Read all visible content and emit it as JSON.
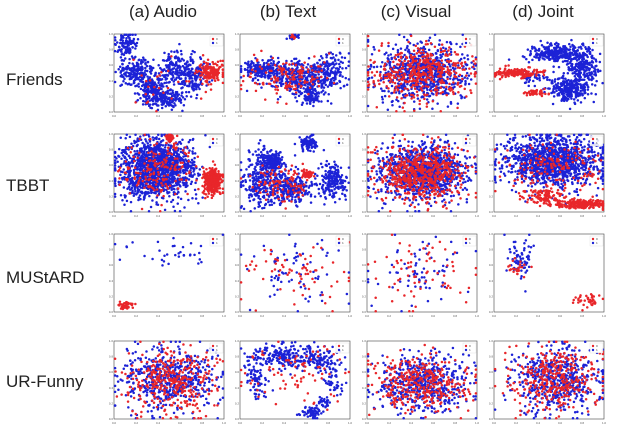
{
  "columns": [
    "(a) Audio",
    "(b) Text",
    "(c) Visual",
    "(d) Joint"
  ],
  "rows": [
    "Friends",
    "TBBT",
    "MUStARD",
    "UR-Funny"
  ],
  "colors": {
    "class0": "#e8262a",
    "class1": "#1c22d6",
    "frame": "#444444",
    "tick": "#555555"
  },
  "legend_labels": [
    "0",
    "1"
  ],
  "axis_ticks": [
    "0.0",
    "0.2",
    "0.4",
    "0.6",
    "0.8",
    "1.0"
  ],
  "chart_data": {
    "type": "scatter",
    "description_of_series": [
      "0",
      "1"
    ],
    "xlim": [
      0,
      1
    ],
    "ylim": [
      0,
      1
    ],
    "legend_position": "top-right",
    "panels": [
      {
        "row": "Friends",
        "col": "(a) Audio",
        "n0": 170,
        "n1": 900,
        "clusters": [
          {
            "cls": 0,
            "x": 0.88,
            "y": 0.52,
            "sx": 0.06,
            "sy": 0.07,
            "w": 0.9
          },
          {
            "cls": 1,
            "x": 0.12,
            "y": 0.85,
            "sx": 0.05,
            "sy": 0.08,
            "w": 0.12
          },
          {
            "cls": 1,
            "x": 0.2,
            "y": 0.5,
            "sx": 0.08,
            "sy": 0.1,
            "w": 0.25
          },
          {
            "cls": 1,
            "x": 0.45,
            "y": 0.18,
            "sx": 0.1,
            "sy": 0.06,
            "w": 0.18
          },
          {
            "cls": 1,
            "x": 0.55,
            "y": 0.55,
            "sx": 0.08,
            "sy": 0.1,
            "w": 0.18
          },
          {
            "cls": 1,
            "x": 0.72,
            "y": 0.45,
            "sx": 0.07,
            "sy": 0.12,
            "w": 0.15
          },
          {
            "cls": 1,
            "x": 0.35,
            "y": 0.3,
            "sx": 0.06,
            "sy": 0.08,
            "w": 0.12
          },
          {
            "cls": 0,
            "x": 0.4,
            "y": 0.3,
            "sx": 0.15,
            "sy": 0.2,
            "w": 0.1
          }
        ]
      },
      {
        "row": "Friends",
        "col": "(b) Text",
        "n0": 150,
        "n1": 800,
        "clusters": [
          {
            "cls": 1,
            "x": 0.48,
            "y": 0.97,
            "sx": 0.02,
            "sy": 0.02,
            "w": 0.04
          },
          {
            "cls": 0,
            "x": 0.48,
            "y": 0.97,
            "sx": 0.01,
            "sy": 0.01,
            "w": 0.08
          },
          {
            "cls": 1,
            "x": 0.2,
            "y": 0.55,
            "sx": 0.1,
            "sy": 0.06,
            "w": 0.25
          },
          {
            "cls": 1,
            "x": 0.5,
            "y": 0.45,
            "sx": 0.15,
            "sy": 0.1,
            "w": 0.4
          },
          {
            "cls": 1,
            "x": 0.8,
            "y": 0.5,
            "sx": 0.08,
            "sy": 0.12,
            "w": 0.2
          },
          {
            "cls": 1,
            "x": 0.65,
            "y": 0.2,
            "sx": 0.04,
            "sy": 0.05,
            "w": 0.1
          },
          {
            "cls": 0,
            "x": 0.45,
            "y": 0.45,
            "sx": 0.2,
            "sy": 0.12,
            "w": 0.92
          }
        ]
      },
      {
        "row": "Friends",
        "col": "(c) Visual",
        "n0": 450,
        "n1": 700,
        "clusters": [
          {
            "cls": 1,
            "x": 0.5,
            "y": 0.5,
            "sx": 0.22,
            "sy": 0.18,
            "w": 1
          },
          {
            "cls": 0,
            "x": 0.5,
            "y": 0.5,
            "sx": 0.22,
            "sy": 0.18,
            "w": 1
          }
        ]
      },
      {
        "row": "Friends",
        "col": "(d) Joint",
        "n0": 200,
        "n1": 800,
        "clusters": [
          {
            "cls": 0,
            "x": 0.22,
            "y": 0.5,
            "sx": 0.1,
            "sy": 0.03,
            "w": 0.8
          },
          {
            "cls": 0,
            "x": 0.38,
            "y": 0.25,
            "sx": 0.04,
            "sy": 0.02,
            "w": 0.2
          },
          {
            "cls": 1,
            "x": 0.55,
            "y": 0.75,
            "sx": 0.12,
            "sy": 0.06,
            "w": 0.35
          },
          {
            "cls": 1,
            "x": 0.8,
            "y": 0.6,
            "sx": 0.07,
            "sy": 0.12,
            "w": 0.3
          },
          {
            "cls": 1,
            "x": 0.7,
            "y": 0.3,
            "sx": 0.1,
            "sy": 0.08,
            "w": 0.3
          },
          {
            "cls": 1,
            "x": 0.4,
            "y": 0.45,
            "sx": 0.08,
            "sy": 0.05,
            "w": 0.05
          }
        ]
      },
      {
        "row": "TBBT",
        "col": "(a) Audio",
        "n0": 600,
        "n1": 1400,
        "clusters": [
          {
            "cls": 1,
            "x": 0.38,
            "y": 0.55,
            "sx": 0.16,
            "sy": 0.18,
            "w": 1
          },
          {
            "cls": 0,
            "x": 0.9,
            "y": 0.4,
            "sx": 0.04,
            "sy": 0.08,
            "w": 0.6
          },
          {
            "cls": 0,
            "x": 0.38,
            "y": 0.55,
            "sx": 0.16,
            "sy": 0.18,
            "w": 0.3
          },
          {
            "cls": 0,
            "x": 0.5,
            "y": 0.95,
            "sx": 0.02,
            "sy": 0.02,
            "w": 0.1
          }
        ]
      },
      {
        "row": "TBBT",
        "col": "(b) Text",
        "n0": 200,
        "n1": 1000,
        "clusters": [
          {
            "cls": 1,
            "x": 0.62,
            "y": 0.88,
            "sx": 0.04,
            "sy": 0.05,
            "w": 0.08
          },
          {
            "cls": 1,
            "x": 0.2,
            "y": 0.4,
            "sx": 0.1,
            "sy": 0.18,
            "w": 0.3
          },
          {
            "cls": 1,
            "x": 0.45,
            "y": 0.3,
            "sx": 0.12,
            "sy": 0.1,
            "w": 0.25
          },
          {
            "cls": 1,
            "x": 0.85,
            "y": 0.4,
            "sx": 0.06,
            "sy": 0.12,
            "w": 0.2
          },
          {
            "cls": 1,
            "x": 0.3,
            "y": 0.65,
            "sx": 0.05,
            "sy": 0.06,
            "w": 0.15
          },
          {
            "cls": 0,
            "x": 0.62,
            "y": 0.48,
            "sx": 0.02,
            "sy": 0.02,
            "w": 0.5
          },
          {
            "cls": 0,
            "x": 0.4,
            "y": 0.35,
            "sx": 0.15,
            "sy": 0.12,
            "w": 0.5
          }
        ]
      },
      {
        "row": "TBBT",
        "col": "(c) Visual",
        "n0": 600,
        "n1": 1000,
        "clusters": [
          {
            "cls": 1,
            "x": 0.5,
            "y": 0.5,
            "sx": 0.2,
            "sy": 0.18,
            "w": 1
          },
          {
            "cls": 0,
            "x": 0.5,
            "y": 0.5,
            "sx": 0.2,
            "sy": 0.18,
            "w": 1
          }
        ]
      },
      {
        "row": "TBBT",
        "col": "(d) Joint",
        "n0": 500,
        "n1": 1200,
        "clusters": [
          {
            "cls": 1,
            "x": 0.55,
            "y": 0.65,
            "sx": 0.22,
            "sy": 0.16,
            "w": 1
          },
          {
            "cls": 0,
            "x": 0.8,
            "y": 0.1,
            "sx": 0.12,
            "sy": 0.03,
            "w": 0.5
          },
          {
            "cls": 0,
            "x": 0.45,
            "y": 0.2,
            "sx": 0.1,
            "sy": 0.05,
            "w": 0.2
          },
          {
            "cls": 0,
            "x": 0.55,
            "y": 0.6,
            "sx": 0.22,
            "sy": 0.16,
            "w": 0.3
          }
        ]
      },
      {
        "row": "MUStARD",
        "col": "(a) Audio",
        "n0": 40,
        "n1": 35,
        "clusters": [
          {
            "cls": 0,
            "x": 0.1,
            "y": 0.08,
            "sx": 0.04,
            "sy": 0.025,
            "w": 1
          },
          {
            "cls": 1,
            "x": 0.5,
            "y": 0.75,
            "sx": 0.22,
            "sy": 0.1,
            "w": 1
          }
        ]
      },
      {
        "row": "MUStARD",
        "col": "(b) Text",
        "n0": 70,
        "n1": 70,
        "clusters": [
          {
            "cls": 0,
            "x": 0.5,
            "y": 0.5,
            "sx": 0.25,
            "sy": 0.22,
            "w": 1
          },
          {
            "cls": 1,
            "x": 0.5,
            "y": 0.5,
            "sx": 0.25,
            "sy": 0.22,
            "w": 1
          }
        ]
      },
      {
        "row": "MUStARD",
        "col": "(c) Visual",
        "n0": 70,
        "n1": 70,
        "clusters": [
          {
            "cls": 0,
            "x": 0.5,
            "y": 0.5,
            "sx": 0.25,
            "sy": 0.22,
            "w": 1
          },
          {
            "cls": 1,
            "x": 0.5,
            "y": 0.5,
            "sx": 0.25,
            "sy": 0.22,
            "w": 1
          }
        ]
      },
      {
        "row": "MUStARD",
        "col": "(d) Joint",
        "n0": 60,
        "n1": 70,
        "clusters": [
          {
            "cls": 1,
            "x": 0.25,
            "y": 0.7,
            "sx": 0.07,
            "sy": 0.12,
            "w": 1
          },
          {
            "cls": 0,
            "x": 0.22,
            "y": 0.55,
            "sx": 0.06,
            "sy": 0.06,
            "w": 0.3
          },
          {
            "cls": 0,
            "x": 0.85,
            "y": 0.15,
            "sx": 0.07,
            "sy": 0.05,
            "w": 0.7
          }
        ]
      },
      {
        "row": "UR-Funny",
        "col": "(a) Audio",
        "n0": 350,
        "n1": 550,
        "clusters": [
          {
            "cls": 1,
            "x": 0.5,
            "y": 0.5,
            "sx": 0.2,
            "sy": 0.2,
            "w": 1
          },
          {
            "cls": 0,
            "x": 0.5,
            "y": 0.5,
            "sx": 0.2,
            "sy": 0.2,
            "w": 1
          }
        ]
      },
      {
        "row": "UR-Funny",
        "col": "(b) Text",
        "n0": 80,
        "n1": 500,
        "clusters": [
          {
            "cls": 1,
            "x": 0.35,
            "y": 0.8,
            "sx": 0.15,
            "sy": 0.08,
            "w": 0.35
          },
          {
            "cls": 1,
            "x": 0.15,
            "y": 0.5,
            "sx": 0.05,
            "sy": 0.12,
            "w": 0.15
          },
          {
            "cls": 1,
            "x": 0.7,
            "y": 0.75,
            "sx": 0.1,
            "sy": 0.08,
            "w": 0.2
          },
          {
            "cls": 1,
            "x": 0.85,
            "y": 0.5,
            "sx": 0.05,
            "sy": 0.1,
            "w": 0.1
          },
          {
            "cls": 1,
            "x": 0.65,
            "y": 0.08,
            "sx": 0.05,
            "sy": 0.04,
            "w": 0.1
          },
          {
            "cls": 1,
            "x": 0.75,
            "y": 0.2,
            "sx": 0.03,
            "sy": 0.04,
            "w": 0.05
          },
          {
            "cls": 0,
            "x": 0.5,
            "y": 0.6,
            "sx": 0.25,
            "sy": 0.2,
            "w": 1
          }
        ]
      },
      {
        "row": "UR-Funny",
        "col": "(c) Visual",
        "n0": 350,
        "n1": 550,
        "clusters": [
          {
            "cls": 1,
            "x": 0.5,
            "y": 0.45,
            "sx": 0.22,
            "sy": 0.18,
            "w": 1
          },
          {
            "cls": 0,
            "x": 0.5,
            "y": 0.45,
            "sx": 0.22,
            "sy": 0.18,
            "w": 1
          }
        ]
      },
      {
        "row": "UR-Funny",
        "col": "(d) Joint",
        "n0": 350,
        "n1": 550,
        "clusters": [
          {
            "cls": 1,
            "x": 0.55,
            "y": 0.5,
            "sx": 0.2,
            "sy": 0.2,
            "w": 1
          },
          {
            "cls": 0,
            "x": 0.55,
            "y": 0.5,
            "sx": 0.2,
            "sy": 0.2,
            "w": 1
          }
        ]
      }
    ]
  }
}
